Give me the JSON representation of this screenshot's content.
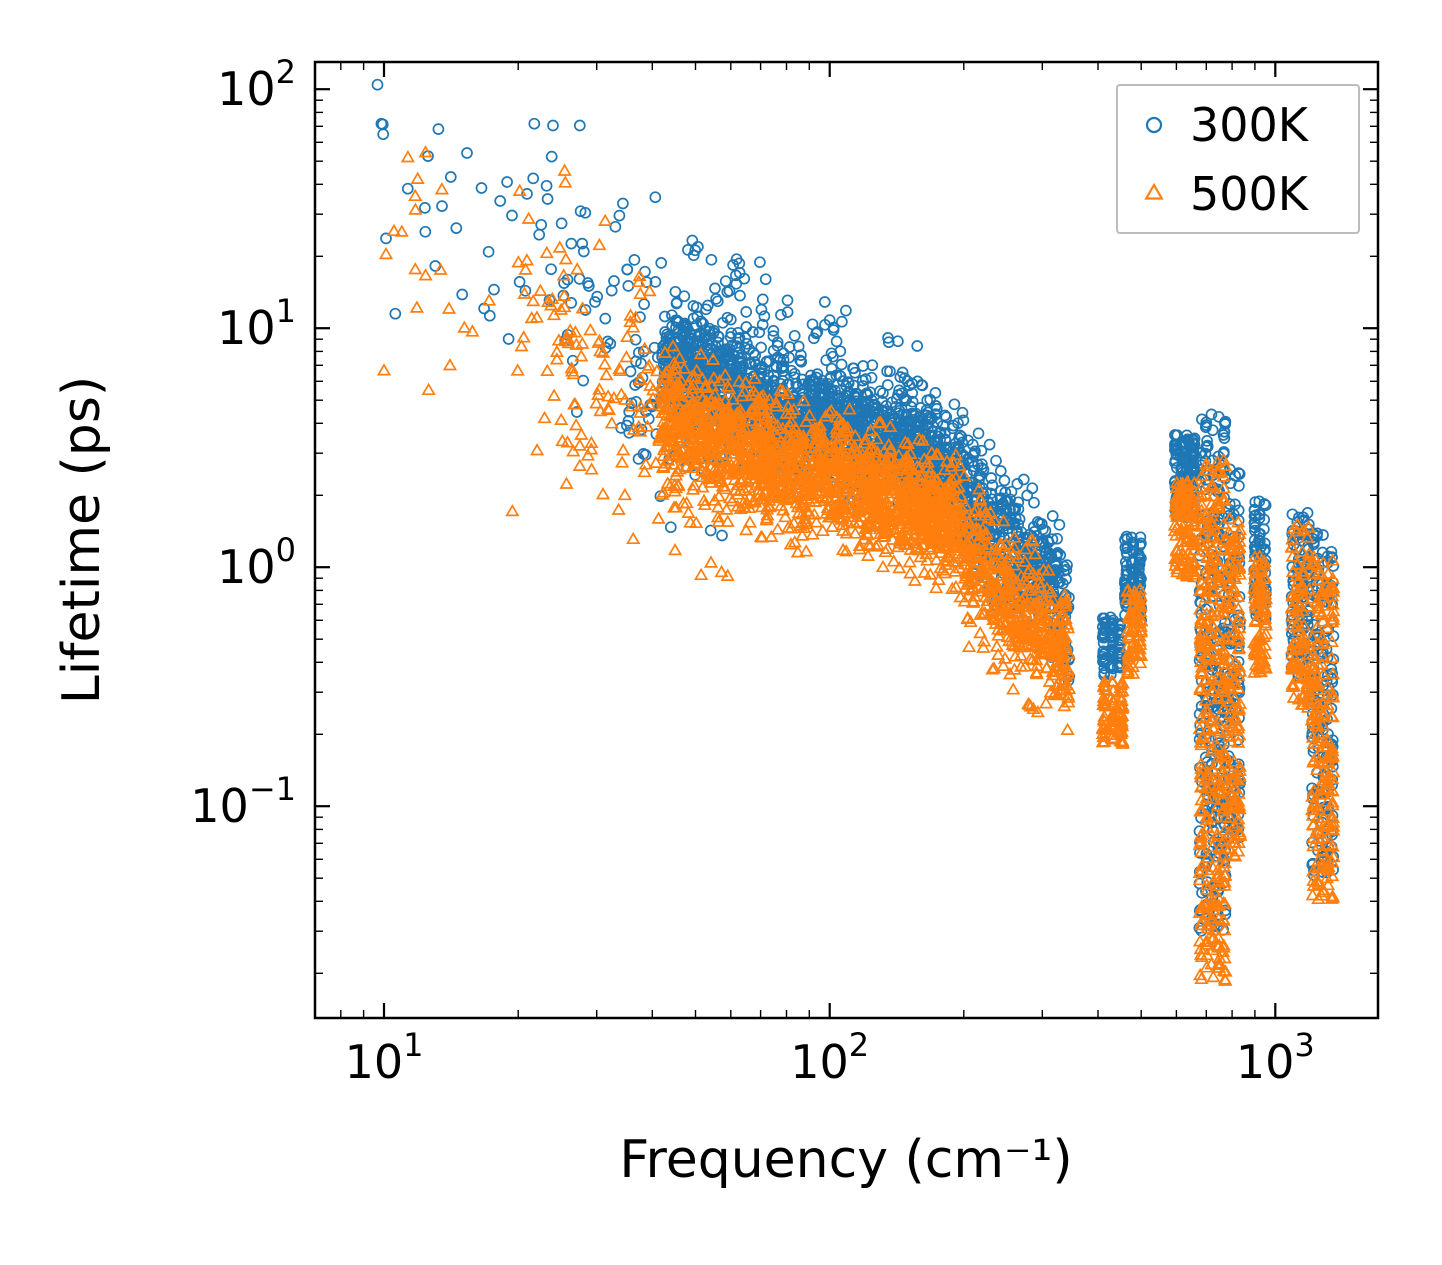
{
  "figure": {
    "background": "#ffffff",
    "frame_color": "#000000",
    "legend_border_color": "#bcbcbc"
  },
  "chart_data": {
    "type": "scatter",
    "title": "",
    "xlabel": "Frequency (cm⁻¹)",
    "ylabel": "Lifetime (ps)",
    "xscale": "log",
    "yscale": "log",
    "xlim": [
      7,
      1700
    ],
    "ylim": [
      0.013,
      130
    ],
    "x_major_ticks": [
      10,
      100,
      1000
    ],
    "y_major_ticks": [
      0.1,
      1,
      10,
      100
    ],
    "grid": false,
    "legend": {
      "location": "upper right"
    },
    "series": [
      {
        "name": "300K",
        "color": "#1f77b4",
        "marker": "circle",
        "filled": false,
        "bands": [
          {
            "kind": "points",
            "pts": [
              [
                10.6,
                11.5
              ]
            ]
          },
          {
            "kind": "powerlaw",
            "x0": 9.5,
            "x1": 20,
            "n": 25,
            "ax": 12,
            "ay": 40,
            "slope": -2.0,
            "spread": 0.27
          },
          {
            "kind": "powerlaw",
            "x0": 20,
            "x1": 42,
            "n": 60,
            "ax": 30,
            "ay": 15,
            "slope": -1.6,
            "spread": 0.26
          },
          {
            "kind": "powerlaw",
            "x0": 35,
            "x1": 60,
            "n": 60,
            "ax": 50,
            "ay": 4.2,
            "slope": -0.8,
            "spread": 0.2
          },
          {
            "kind": "powerlaw",
            "x0": 42,
            "x1": 90,
            "n": 750,
            "ax": 60,
            "ay": 5.5,
            "slope": -0.9,
            "spread": 0.12
          },
          {
            "kind": "powerlaw",
            "x0": 45,
            "x1": 160,
            "n": 180,
            "ax": 80,
            "ay": 7.5,
            "slope": -0.9,
            "spread": 0.18
          },
          {
            "kind": "powerlaw",
            "x0": 90,
            "x1": 200,
            "n": 850,
            "ax": 130,
            "ay": 3.4,
            "slope": -0.75,
            "spread": 0.12
          },
          {
            "kind": "powerlaw",
            "x0": 200,
            "x1": 300,
            "n": 350,
            "ax": 245,
            "ay": 1.35,
            "slope": -1.9,
            "spread": 0.13
          },
          {
            "kind": "powerlaw",
            "x0": 300,
            "x1": 345,
            "n": 120,
            "ax": 320,
            "ay": 0.8,
            "slope": -2.5,
            "spread": 0.12
          },
          {
            "kind": "streak",
            "x0": 405,
            "x1": 455,
            "n": 80,
            "y0": 0.35,
            "y1": 0.62,
            "columns": 3
          },
          {
            "kind": "streak",
            "x0": 455,
            "x1": 505,
            "n": 100,
            "y0": 0.6,
            "y1": 1.35,
            "columns": 3
          },
          {
            "kind": "streak",
            "x0": 590,
            "x1": 665,
            "n": 140,
            "y0": 1.6,
            "y1": 3.6,
            "columns": 4
          },
          {
            "kind": "streak",
            "x0": 670,
            "x1": 780,
            "n": 260,
            "y0": 0.03,
            "y1": 4.4,
            "columns": 5
          },
          {
            "kind": "streak",
            "x0": 780,
            "x1": 840,
            "n": 100,
            "y0": 0.07,
            "y1": 2.6,
            "columns": 3
          },
          {
            "kind": "streak",
            "x0": 890,
            "x1": 960,
            "n": 80,
            "y0": 0.6,
            "y1": 1.9,
            "columns": 3
          },
          {
            "kind": "streak",
            "x0": 1080,
            "x1": 1200,
            "n": 100,
            "y0": 0.35,
            "y1": 1.7,
            "columns": 4
          },
          {
            "kind": "streak",
            "x0": 1200,
            "x1": 1360,
            "n": 160,
            "y0": 0.05,
            "y1": 1.4,
            "columns": 5
          }
        ]
      },
      {
        "name": "500K",
        "color": "#ff7f0e",
        "marker": "triangle",
        "filled": false,
        "bands": [
          {
            "kind": "points",
            "pts": [
              [
                10.0,
                6.6
              ]
            ]
          },
          {
            "kind": "powerlaw",
            "x0": 9.5,
            "x1": 20,
            "n": 22,
            "ax": 12,
            "ay": 25,
            "slope": -2.0,
            "spread": 0.3
          },
          {
            "kind": "powerlaw",
            "x0": 20,
            "x1": 42,
            "n": 70,
            "ax": 30,
            "ay": 8,
            "slope": -1.6,
            "spread": 0.28
          },
          {
            "kind": "powerlaw",
            "x0": 24,
            "x1": 60,
            "n": 90,
            "ax": 45,
            "ay": 3.2,
            "slope": -0.8,
            "spread": 0.25
          },
          {
            "kind": "powerlaw",
            "x0": 42,
            "x1": 90,
            "n": 750,
            "ax": 60,
            "ay": 3.2,
            "slope": -0.85,
            "spread": 0.13
          },
          {
            "kind": "powerlaw",
            "x0": 90,
            "x1": 200,
            "n": 850,
            "ax": 130,
            "ay": 2.0,
            "slope": -0.8,
            "spread": 0.12
          },
          {
            "kind": "powerlaw",
            "x0": 200,
            "x1": 300,
            "n": 350,
            "ax": 245,
            "ay": 0.75,
            "slope": -1.8,
            "spread": 0.14
          },
          {
            "kind": "powerlaw",
            "x0": 300,
            "x1": 345,
            "n": 120,
            "ax": 320,
            "ay": 0.48,
            "slope": -2.3,
            "spread": 0.12
          },
          {
            "kind": "streak",
            "x0": 405,
            "x1": 460,
            "n": 90,
            "y0": 0.18,
            "y1": 0.33,
            "columns": 3
          },
          {
            "kind": "streak",
            "x0": 460,
            "x1": 505,
            "n": 80,
            "y0": 0.35,
            "y1": 0.8,
            "columns": 3
          },
          {
            "kind": "streak",
            "x0": 590,
            "x1": 665,
            "n": 130,
            "y0": 0.9,
            "y1": 2.3,
            "columns": 4
          },
          {
            "kind": "streak",
            "x0": 670,
            "x1": 780,
            "n": 340,
            "y0": 0.018,
            "y1": 2.8,
            "columns": 5
          },
          {
            "kind": "streak",
            "x0": 780,
            "x1": 840,
            "n": 130,
            "y0": 0.06,
            "y1": 1.6,
            "columns": 3
          },
          {
            "kind": "streak",
            "x0": 890,
            "x1": 960,
            "n": 90,
            "y0": 0.35,
            "y1": 1.1,
            "columns": 3
          },
          {
            "kind": "streak",
            "x0": 1080,
            "x1": 1200,
            "n": 100,
            "y0": 0.25,
            "y1": 1.5,
            "columns": 4
          },
          {
            "kind": "streak",
            "x0": 1200,
            "x1": 1360,
            "n": 200,
            "y0": 0.04,
            "y1": 1.1,
            "columns": 5
          }
        ]
      }
    ]
  }
}
